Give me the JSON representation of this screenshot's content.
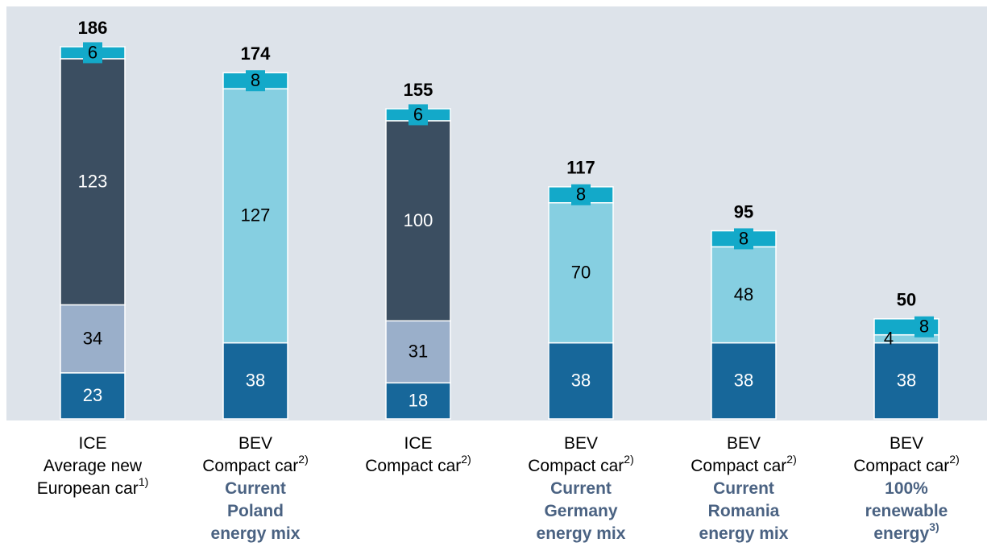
{
  "chart_data": {
    "type": "stacked_bar",
    "categories": [
      {
        "type": "ICE",
        "model": [
          "Average new",
          "European car"
        ],
        "note": "1)"
      },
      {
        "type": "BEV",
        "model": [
          "Compact car"
        ],
        "note": "2)",
        "mix": [
          "Current",
          "Poland",
          "energy mix"
        ]
      },
      {
        "type": "ICE",
        "model": [
          "Compact car"
        ],
        "note": "2)"
      },
      {
        "type": "BEV",
        "model": [
          "Compact car"
        ],
        "note": "2)",
        "mix": [
          "Current",
          "Germany",
          "energy mix"
        ]
      },
      {
        "type": "BEV",
        "model": [
          "Compact car"
        ],
        "note": "2)",
        "mix": [
          "Current",
          "Romania",
          "energy mix"
        ]
      },
      {
        "type": "BEV",
        "model": [
          "Compact car"
        ],
        "note": "2)",
        "mix": [
          "100%",
          "renewable",
          "energy"
        ],
        "mix_note": "3)"
      }
    ],
    "series": [
      {
        "color": "#17679a",
        "label_color": "#ffffff",
        "values": [
          23,
          38,
          18,
          38,
          38,
          38
        ]
      },
      {
        "color": "#9aafca",
        "label_color": "#000000",
        "values": [
          34,
          null,
          31,
          null,
          null,
          null
        ]
      },
      {
        "color": "#3b4e61",
        "label_color": "#ffffff",
        "values": [
          123,
          null,
          100,
          null,
          null,
          null
        ]
      },
      {
        "color": "#86cfe1",
        "label_color": "#000000",
        "values": [
          null,
          127,
          null,
          70,
          48,
          4
        ]
      },
      {
        "color": "#13a9c9",
        "label_color": "#000000",
        "values": [
          6,
          8,
          6,
          8,
          8,
          8
        ],
        "boxed": true
      }
    ],
    "totals": [
      186,
      174,
      155,
      117,
      95,
      50
    ],
    "ylim": [
      0,
      186
    ]
  }
}
